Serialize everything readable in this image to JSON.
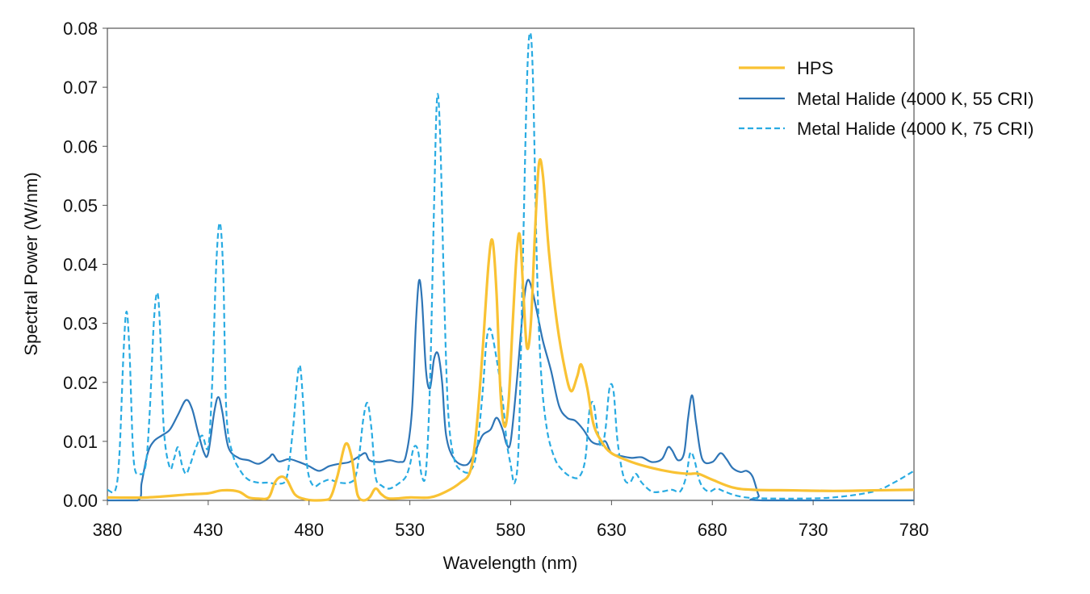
{
  "chart_data": {
    "type": "line",
    "title": "",
    "xlabel": "Wavelength (nm)",
    "ylabel": "Spectral Power (W/nm)",
    "xlim": [
      380,
      780
    ],
    "ylim": [
      0,
      0.08
    ],
    "x_ticks": [
      380,
      430,
      480,
      530,
      580,
      630,
      680,
      730,
      780
    ],
    "x_tick_labels": [
      "380",
      "430",
      "480",
      "530",
      "580",
      "630",
      "680",
      "730",
      "780"
    ],
    "y_ticks": [
      0,
      0.01,
      0.02,
      0.03,
      0.04,
      0.05,
      0.06,
      0.07,
      0.08
    ],
    "y_tick_labels": [
      "0.00",
      "0.01",
      "0.02",
      "0.03",
      "0.04",
      "0.05",
      "0.06",
      "0.07",
      "0.08"
    ],
    "grid": false,
    "legend_position": "top-right",
    "series": [
      {
        "name": "HPS",
        "color": "#F9C233",
        "style": "solid",
        "points": [
          [
            380,
            0.0005
          ],
          [
            400,
            0.0005
          ],
          [
            420,
            0.001
          ],
          [
            430,
            0.0012
          ],
          [
            437,
            0.0017
          ],
          [
            445,
            0.0015
          ],
          [
            450,
            0.0005
          ],
          [
            455,
            0.0003
          ],
          [
            460,
            0.0005
          ],
          [
            463,
            0.003
          ],
          [
            466,
            0.004
          ],
          [
            469,
            0.0035
          ],
          [
            473,
            0.001
          ],
          [
            478,
            0.0002
          ],
          [
            484,
            0.0
          ],
          [
            490,
            0.0002
          ],
          [
            494,
            0.004
          ],
          [
            498,
            0.0095
          ],
          [
            501,
            0.0075
          ],
          [
            504,
            0.001
          ],
          [
            507,
            0.0
          ],
          [
            510,
            0.0005
          ],
          [
            513,
            0.002
          ],
          [
            516,
            0.001
          ],
          [
            520,
            0.0003
          ],
          [
            530,
            0.0005
          ],
          [
            540,
            0.0005
          ],
          [
            548,
            0.0015
          ],
          [
            555,
            0.003
          ],
          [
            560,
            0.005
          ],
          [
            563,
            0.012
          ],
          [
            566,
            0.025
          ],
          [
            569,
            0.04
          ],
          [
            571,
            0.044
          ],
          [
            573,
            0.035
          ],
          [
            575,
            0.018
          ],
          [
            577,
            0.0125
          ],
          [
            579,
            0.017
          ],
          [
            581,
            0.03
          ],
          [
            583,
            0.042
          ],
          [
            584.5,
            0.045
          ],
          [
            586,
            0.037
          ],
          [
            588,
            0.026
          ],
          [
            590,
            0.03
          ],
          [
            592,
            0.045
          ],
          [
            594,
            0.057
          ],
          [
            596,
            0.055
          ],
          [
            599,
            0.042
          ],
          [
            603,
            0.03
          ],
          [
            607,
            0.022
          ],
          [
            610,
            0.0185
          ],
          [
            613,
            0.021
          ],
          [
            615,
            0.023
          ],
          [
            618,
            0.019
          ],
          [
            621,
            0.013
          ],
          [
            625,
            0.01
          ],
          [
            630,
            0.008
          ],
          [
            640,
            0.0065
          ],
          [
            650,
            0.0055
          ],
          [
            660,
            0.0048
          ],
          [
            668,
            0.0045
          ],
          [
            673,
            0.0045
          ],
          [
            680,
            0.0035
          ],
          [
            690,
            0.0022
          ],
          [
            700,
            0.0018
          ],
          [
            720,
            0.0017
          ],
          [
            740,
            0.0016
          ],
          [
            760,
            0.0017
          ],
          [
            780,
            0.0018
          ]
        ]
      },
      {
        "name": "Metal Halide (4000 K, 55 CRI)",
        "color": "#2E75B6",
        "style": "solid",
        "points": [
          [
            380,
            0.0
          ],
          [
            395,
            0.0
          ],
          [
            397,
            0.003
          ],
          [
            400,
            0.008
          ],
          [
            403,
            0.01
          ],
          [
            407,
            0.011
          ],
          [
            411,
            0.012
          ],
          [
            415,
            0.0145
          ],
          [
            419,
            0.017
          ],
          [
            422,
            0.0155
          ],
          [
            425,
            0.0115
          ],
          [
            428,
            0.008
          ],
          [
            430,
            0.008
          ],
          [
            433,
            0.015
          ],
          [
            435,
            0.0175
          ],
          [
            437,
            0.015
          ],
          [
            440,
            0.009
          ],
          [
            445,
            0.0072
          ],
          [
            450,
            0.0068
          ],
          [
            455,
            0.0062
          ],
          [
            460,
            0.0072
          ],
          [
            462,
            0.0078
          ],
          [
            465,
            0.0066
          ],
          [
            470,
            0.007
          ],
          [
            475,
            0.0065
          ],
          [
            480,
            0.0058
          ],
          [
            485,
            0.005
          ],
          [
            490,
            0.0058
          ],
          [
            495,
            0.0062
          ],
          [
            500,
            0.0065
          ],
          [
            505,
            0.0075
          ],
          [
            508,
            0.008
          ],
          [
            510,
            0.0068
          ],
          [
            515,
            0.0065
          ],
          [
            520,
            0.0068
          ],
          [
            525,
            0.0065
          ],
          [
            528,
            0.0075
          ],
          [
            531,
            0.015
          ],
          [
            533,
            0.03
          ],
          [
            534.5,
            0.0372
          ],
          [
            536,
            0.034
          ],
          [
            538,
            0.022
          ],
          [
            540,
            0.019
          ],
          [
            542,
            0.024
          ],
          [
            544,
            0.0248
          ],
          [
            546,
            0.02
          ],
          [
            548,
            0.011
          ],
          [
            552,
            0.007
          ],
          [
            558,
            0.006
          ],
          [
            562,
            0.008
          ],
          [
            566,
            0.011
          ],
          [
            570,
            0.012
          ],
          [
            573,
            0.014
          ],
          [
            576,
            0.012
          ],
          [
            578,
            0.0095
          ],
          [
            580,
            0.01
          ],
          [
            583,
            0.02
          ],
          [
            586,
            0.032
          ],
          [
            588,
            0.037
          ],
          [
            590,
            0.0365
          ],
          [
            593,
            0.032
          ],
          [
            596,
            0.027
          ],
          [
            600,
            0.022
          ],
          [
            604,
            0.016
          ],
          [
            608,
            0.014
          ],
          [
            612,
            0.0135
          ],
          [
            616,
            0.012
          ],
          [
            620,
            0.01
          ],
          [
            624,
            0.0095
          ],
          [
            627,
            0.01
          ],
          [
            630,
            0.008
          ],
          [
            635,
            0.0075
          ],
          [
            640,
            0.0072
          ],
          [
            645,
            0.0073
          ],
          [
            650,
            0.0065
          ],
          [
            655,
            0.007
          ],
          [
            658,
            0.009
          ],
          [
            660,
            0.0085
          ],
          [
            663,
            0.0068
          ],
          [
            666,
            0.008
          ],
          [
            668,
            0.014
          ],
          [
            670,
            0.0178
          ],
          [
            672,
            0.013
          ],
          [
            675,
            0.007
          ],
          [
            680,
            0.0065
          ],
          [
            684,
            0.008
          ],
          [
            687,
            0.007
          ],
          [
            690,
            0.0055
          ],
          [
            694,
            0.0048
          ],
          [
            697,
            0.005
          ],
          [
            700,
            0.004
          ],
          [
            703,
            0.0008
          ],
          [
            705,
            0.0
          ],
          [
            780,
            0.0
          ]
        ]
      },
      {
        "name": "Metal Halide (4000 K, 75 CRI)",
        "color": "#29ABE2",
        "style": "dashed",
        "points": [
          [
            380,
            0.0018
          ],
          [
            384,
            0.0018
          ],
          [
            386,
            0.008
          ],
          [
            388,
            0.025
          ],
          [
            389.5,
            0.032
          ],
          [
            391,
            0.025
          ],
          [
            393,
            0.007
          ],
          [
            396,
            0.0045
          ],
          [
            399,
            0.006
          ],
          [
            401,
            0.015
          ],
          [
            403,
            0.03
          ],
          [
            404.7,
            0.0352
          ],
          [
            406,
            0.03
          ],
          [
            408,
            0.012
          ],
          [
            411,
            0.0055
          ],
          [
            413,
            0.007
          ],
          [
            415,
            0.009
          ],
          [
            417,
            0.006
          ],
          [
            419,
            0.0045
          ],
          [
            421,
            0.006
          ],
          [
            424,
            0.009
          ],
          [
            427,
            0.011
          ],
          [
            430,
            0.009
          ],
          [
            432,
            0.02
          ],
          [
            434,
            0.04
          ],
          [
            435.8,
            0.047
          ],
          [
            437.5,
            0.038
          ],
          [
            439,
            0.015
          ],
          [
            442,
            0.008
          ],
          [
            446,
            0.005
          ],
          [
            450,
            0.0035
          ],
          [
            455,
            0.003
          ],
          [
            460,
            0.003
          ],
          [
            465,
            0.0028
          ],
          [
            469,
            0.004
          ],
          [
            472,
            0.012
          ],
          [
            474,
            0.02
          ],
          [
            475.5,
            0.0228
          ],
          [
            477,
            0.017
          ],
          [
            479,
            0.006
          ],
          [
            482,
            0.0025
          ],
          [
            486,
            0.003
          ],
          [
            490,
            0.0035
          ],
          [
            495,
            0.003
          ],
          [
            500,
            0.003
          ],
          [
            503,
            0.004
          ],
          [
            505,
            0.008
          ],
          [
            507,
            0.014
          ],
          [
            509,
            0.0165
          ],
          [
            511,
            0.012
          ],
          [
            513,
            0.004
          ],
          [
            516,
            0.0025
          ],
          [
            520,
            0.002
          ],
          [
            525,
            0.003
          ],
          [
            528,
            0.004
          ],
          [
            530,
            0.006
          ],
          [
            532,
            0.009
          ],
          [
            534,
            0.0085
          ],
          [
            536,
            0.004
          ],
          [
            538,
            0.005
          ],
          [
            540,
            0.02
          ],
          [
            542,
            0.05
          ],
          [
            543.5,
            0.0682
          ],
          [
            545,
            0.062
          ],
          [
            547,
            0.035
          ],
          [
            549,
            0.015
          ],
          [
            552,
            0.007
          ],
          [
            556,
            0.005
          ],
          [
            560,
            0.005
          ],
          [
            563,
            0.008
          ],
          [
            566,
            0.018
          ],
          [
            568,
            0.027
          ],
          [
            570,
            0.029
          ],
          [
            573,
            0.024
          ],
          [
            576,
            0.017
          ],
          [
            578,
            0.01
          ],
          [
            580,
            0.006
          ],
          [
            582,
            0.003
          ],
          [
            584,
            0.01
          ],
          [
            586,
            0.04
          ],
          [
            588,
            0.07
          ],
          [
            589.5,
            0.0792
          ],
          [
            591,
            0.072
          ],
          [
            593,
            0.04
          ],
          [
            595,
            0.022
          ],
          [
            598,
            0.012
          ],
          [
            602,
            0.007
          ],
          [
            606,
            0.005
          ],
          [
            610,
            0.004
          ],
          [
            614,
            0.004
          ],
          [
            617,
            0.007
          ],
          [
            619,
            0.015
          ],
          [
            621,
            0.0165
          ],
          [
            623,
            0.012
          ],
          [
            625,
            0.009
          ],
          [
            627,
            0.012
          ],
          [
            629,
            0.019
          ],
          [
            631,
            0.0185
          ],
          [
            633,
            0.01
          ],
          [
            636,
            0.004
          ],
          [
            639,
            0.003
          ],
          [
            642,
            0.0045
          ],
          [
            645,
            0.003
          ],
          [
            650,
            0.0015
          ],
          [
            655,
            0.0015
          ],
          [
            660,
            0.0018
          ],
          [
            664,
            0.0015
          ],
          [
            667,
            0.004
          ],
          [
            669,
            0.008
          ],
          [
            671,
            0.007
          ],
          [
            674,
            0.003
          ],
          [
            678,
            0.0015
          ],
          [
            682,
            0.002
          ],
          [
            686,
            0.0015
          ],
          [
            692,
            0.0008
          ],
          [
            700,
            0.0004
          ],
          [
            720,
            0.0003
          ],
          [
            740,
            0.0005
          ],
          [
            760,
            0.0015
          ],
          [
            770,
            0.003
          ],
          [
            780,
            0.005
          ]
        ]
      }
    ]
  }
}
